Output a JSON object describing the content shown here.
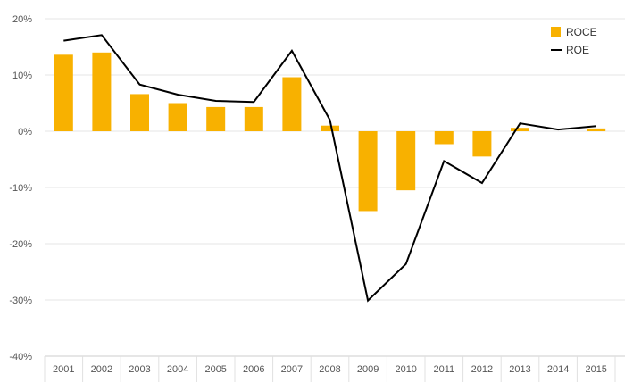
{
  "chart_data": {
    "type": "bar",
    "categories": [
      "2001",
      "2002",
      "2003",
      "2004",
      "2005",
      "2006",
      "2007",
      "2008",
      "2009",
      "2010",
      "2011",
      "2012",
      "2013",
      "2014",
      "2015"
    ],
    "series": [
      {
        "name": "ROCE",
        "type": "bar",
        "color": "#F8B100",
        "values": [
          13.6,
          14.0,
          6.6,
          5.0,
          4.3,
          4.3,
          9.6,
          1.0,
          -14.2,
          -10.5,
          -2.3,
          -4.5,
          0.6,
          0.0,
          0.5
        ]
      },
      {
        "name": "ROE",
        "type": "line",
        "color": "#000000",
        "values": [
          16.1,
          17.1,
          8.3,
          6.5,
          5.4,
          5.2,
          14.3,
          2.0,
          -30.1,
          -23.6,
          -5.3,
          -9.2,
          1.4,
          0.3,
          0.9
        ]
      }
    ],
    "yticks": [
      "20%",
      "10%",
      "0%",
      "-10%",
      "-20%",
      "-30%",
      "-40%"
    ],
    "ylim": [
      -40,
      20
    ],
    "grid": true,
    "legend_position": "top-right",
    "title": "",
    "xlabel": "",
    "ylabel": ""
  }
}
